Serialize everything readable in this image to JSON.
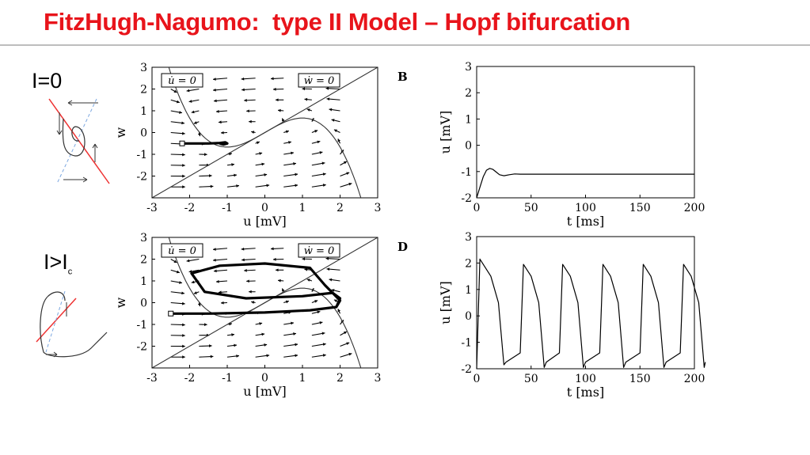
{
  "slide": {
    "title": "FitzHugh-Nagumo:  type II Model – Hopf bifurcation",
    "cond_top": "I=0",
    "cond_bottom_main": "I>I",
    "cond_bottom_sub": "c"
  },
  "chart_data": [
    {
      "id": "A",
      "type": "phase-plane",
      "panel_label": "",
      "xlabel": "u [mV]",
      "ylabel": "w",
      "xlim": [
        -3,
        3
      ],
      "ylim": [
        -3,
        3
      ],
      "xticks": [
        -3,
        -2,
        -1,
        0,
        1,
        2,
        3
      ],
      "yticks": [
        -2,
        -1,
        0,
        1,
        2,
        3
      ],
      "nullcline_labels": [
        "u̇ = 0",
        "ẇ = 0"
      ],
      "trajectory": [
        [
          -2.2,
          -0.5
        ],
        [
          -1.5,
          -0.5
        ],
        [
          -1.2,
          -0.48
        ],
        [
          -1.05,
          -0.45
        ],
        [
          -1.0,
          -0.5
        ],
        [
          -1.1,
          -0.55
        ],
        [
          -1.2,
          -0.5
        ]
      ]
    },
    {
      "id": "B",
      "type": "line",
      "panel_label": "B",
      "xlabel": "t [ms]",
      "ylabel": "u [mV]",
      "xlim": [
        0,
        200
      ],
      "ylim": [
        -2,
        3
      ],
      "xticks": [
        0,
        50,
        100,
        150,
        200
      ],
      "yticks": [
        -2,
        -1,
        0,
        1,
        2,
        3
      ],
      "x": [
        0,
        3,
        6,
        9,
        12,
        15,
        18,
        21,
        25,
        30,
        35,
        40,
        60,
        100,
        150,
        200
      ],
      "y": [
        -2.0,
        -1.6,
        -1.2,
        -0.95,
        -0.88,
        -0.92,
        -1.02,
        -1.12,
        -1.16,
        -1.12,
        -1.09,
        -1.1,
        -1.1,
        -1.1,
        -1.1,
        -1.1
      ]
    },
    {
      "id": "C",
      "type": "phase-plane",
      "panel_label": "",
      "xlabel": "u [mV]",
      "ylabel": "w",
      "xlim": [
        -3,
        3
      ],
      "ylim": [
        -3,
        3
      ],
      "xticks": [
        -3,
        -2,
        -1,
        0,
        1,
        2,
        3
      ],
      "yticks": [
        -2,
        -1,
        0,
        1,
        2,
        3
      ],
      "nullcline_labels": [
        "u̇ = 0",
        "ẇ = 0"
      ],
      "trajectory": [
        [
          -2.5,
          -0.5
        ],
        [
          -1.5,
          -0.5
        ],
        [
          0.0,
          -0.45
        ],
        [
          1.2,
          -0.35
        ],
        [
          1.9,
          -0.2
        ],
        [
          2.0,
          0.1
        ],
        [
          1.6,
          0.8
        ],
        [
          1.2,
          1.6
        ],
        [
          0.0,
          1.8
        ],
        [
          -1.2,
          1.7
        ],
        [
          -1.95,
          1.35
        ],
        [
          -1.6,
          0.5
        ],
        [
          -0.5,
          0.2
        ],
        [
          1.0,
          0.3
        ],
        [
          1.8,
          0.45
        ],
        [
          2.0,
          0.2
        ],
        [
          1.9,
          -0.2
        ]
      ]
    },
    {
      "id": "D",
      "type": "line",
      "panel_label": "D",
      "xlabel": "t [ms]",
      "ylabel": "u [mV]",
      "xlim": [
        0,
        200
      ],
      "ylim": [
        -2,
        3
      ],
      "xticks": [
        0,
        50,
        100,
        150,
        200
      ],
      "yticks": [
        -2,
        -1,
        0,
        1,
        2,
        3
      ],
      "x": [
        0,
        3,
        13,
        20,
        25,
        27,
        40,
        43,
        50,
        57,
        62,
        64,
        76,
        79,
        86,
        93,
        98,
        100,
        113,
        116,
        123,
        130,
        135,
        137,
        150,
        153,
        160,
        167,
        172,
        174,
        187,
        190,
        197,
        204,
        209,
        210
      ],
      "y": [
        -2.0,
        2.15,
        1.5,
        0.5,
        -1.85,
        -1.75,
        -1.4,
        1.95,
        1.5,
        0.5,
        -1.95,
        -1.75,
        -1.4,
        1.95,
        1.5,
        0.5,
        -1.95,
        -1.75,
        -1.4,
        1.95,
        1.5,
        0.5,
        -1.95,
        -1.75,
        -1.4,
        1.95,
        1.5,
        0.5,
        -1.95,
        -1.75,
        -1.4,
        1.95,
        1.5,
        0.5,
        -1.95,
        -1.75
      ]
    }
  ]
}
